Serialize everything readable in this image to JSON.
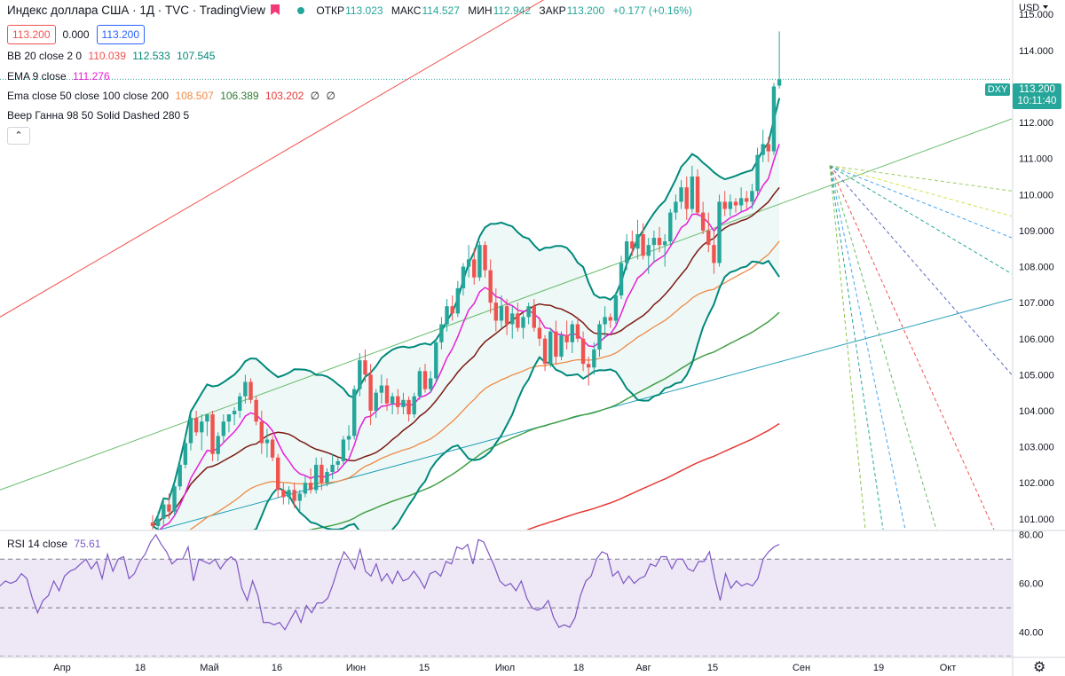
{
  "legend": {
    "title": "Индекс доллара США · 1Д · TVC · TradingView",
    "ohlc": [
      {
        "k": "ОТКР",
        "v": "113.023"
      },
      {
        "k": "МАКС",
        "v": "114.527"
      },
      {
        "k": "МИН",
        "v": "112.942"
      },
      {
        "k": "ЗАКР",
        "v": "113.200"
      }
    ],
    "change": "+0.177 (+0.16%)",
    "box_bid": "113.200",
    "box_mid": "0.000",
    "box_ask": "113.200",
    "bb": {
      "label": "BB 20 close 2 0",
      "v1": "110.039",
      "v2": "112.533",
      "v3": "107.545"
    },
    "ema9": {
      "label": "EMA 9 close",
      "v": "111.276"
    },
    "ema3": {
      "label": "Ema close 50 close 100 close 200",
      "v1": "108.507",
      "v2": "106.389",
      "v3": "103.202",
      "v4": "∅",
      "v5": "∅"
    },
    "gann": "Веер Ганна 98 50 Solid Dashed 280 5",
    "rsi": {
      "label": "RSI 14 close",
      "v": "75.61"
    },
    "collapse": "⌃"
  },
  "axis": {
    "currency": "USD",
    "price_ticks": [
      "115.000",
      "114.000",
      "113.000",
      "112.000",
      "111.000",
      "110.000",
      "109.000",
      "108.000",
      "107.000",
      "106.000",
      "105.000",
      "104.000",
      "103.000",
      "102.000",
      "101.000"
    ],
    "rsi_ticks": [
      "80.00",
      "60.00",
      "40.00"
    ],
    "time_ticks": [
      "Апр",
      "18",
      "Май",
      "16",
      "Июн",
      "15",
      "Июл",
      "18",
      "Авг",
      "15",
      "Сен",
      "19",
      "Окт"
    ],
    "last_price": "113.200",
    "countdown": "10:11:40",
    "symbol": "DXY"
  },
  "colors": {
    "up": "#26a69a",
    "down": "#ef5350",
    "bb": "#00897b",
    "ema9": "#e91ed6",
    "ema50": "#7b1a12",
    "ema100": "#ef8a45",
    "ema200": "#43a047",
    "ema_red": "#e53935",
    "rsi_line": "#7e57c2",
    "rsi_band": "#ede7f6"
  },
  "chart_data": {
    "type": "candlestick",
    "title": "Индекс доллара США · 1Д · TVC",
    "ylabel": "USD",
    "ylim": [
      100.7,
      115.4
    ],
    "x_range": [
      0,
      205
    ],
    "candles": [
      {
        "o": 100.9,
        "h": 101.1,
        "l": 100.6,
        "c": 100.8
      },
      {
        "o": 100.8,
        "h": 101.2,
        "l": 100.6,
        "c": 101.0
      },
      {
        "o": 101.0,
        "h": 101.6,
        "l": 100.8,
        "c": 101.4
      },
      {
        "o": 101.4,
        "h": 101.7,
        "l": 101.0,
        "c": 101.2
      },
      {
        "o": 101.2,
        "h": 102.0,
        "l": 101.1,
        "c": 101.9
      },
      {
        "o": 101.9,
        "h": 102.7,
        "l": 101.8,
        "c": 102.5
      },
      {
        "o": 102.5,
        "h": 103.3,
        "l": 102.4,
        "c": 103.1
      },
      {
        "o": 103.1,
        "h": 103.9,
        "l": 102.9,
        "c": 103.8
      },
      {
        "o": 103.8,
        "h": 104.0,
        "l": 103.3,
        "c": 103.4
      },
      {
        "o": 103.4,
        "h": 103.9,
        "l": 102.9,
        "c": 103.7
      },
      {
        "o": 103.7,
        "h": 103.9,
        "l": 103.3,
        "c": 103.9
      },
      {
        "o": 103.9,
        "h": 104.0,
        "l": 102.6,
        "c": 102.8
      },
      {
        "o": 102.8,
        "h": 103.4,
        "l": 102.6,
        "c": 103.3
      },
      {
        "o": 103.3,
        "h": 103.9,
        "l": 103.1,
        "c": 103.7
      },
      {
        "o": 103.7,
        "h": 103.9,
        "l": 103.4,
        "c": 103.9
      },
      {
        "o": 103.9,
        "h": 104.1,
        "l": 103.6,
        "c": 104.0
      },
      {
        "o": 104.0,
        "h": 104.5,
        "l": 103.8,
        "c": 104.4
      },
      {
        "o": 104.4,
        "h": 105.0,
        "l": 104.2,
        "c": 104.8
      },
      {
        "o": 104.8,
        "h": 104.9,
        "l": 104.2,
        "c": 104.3
      },
      {
        "o": 104.3,
        "h": 104.4,
        "l": 103.6,
        "c": 103.7
      },
      {
        "o": 103.7,
        "h": 104.0,
        "l": 102.8,
        "c": 103.1
      },
      {
        "o": 103.1,
        "h": 103.5,
        "l": 102.7,
        "c": 103.2
      },
      {
        "o": 103.2,
        "h": 103.3,
        "l": 102.6,
        "c": 102.7
      },
      {
        "o": 102.7,
        "h": 102.8,
        "l": 101.6,
        "c": 101.8
      },
      {
        "o": 101.8,
        "h": 102.0,
        "l": 101.4,
        "c": 101.6
      },
      {
        "o": 101.6,
        "h": 101.9,
        "l": 101.4,
        "c": 101.8
      },
      {
        "o": 101.8,
        "h": 102.0,
        "l": 101.3,
        "c": 101.5
      },
      {
        "o": 101.5,
        "h": 101.8,
        "l": 101.2,
        "c": 101.7
      },
      {
        "o": 101.7,
        "h": 102.2,
        "l": 101.6,
        "c": 102.0
      },
      {
        "o": 102.0,
        "h": 102.4,
        "l": 101.7,
        "c": 101.8
      },
      {
        "o": 101.8,
        "h": 102.7,
        "l": 101.7,
        "c": 102.5
      },
      {
        "o": 102.5,
        "h": 102.7,
        "l": 101.8,
        "c": 102.0
      },
      {
        "o": 102.0,
        "h": 102.4,
        "l": 101.9,
        "c": 102.3
      },
      {
        "o": 102.3,
        "h": 102.8,
        "l": 102.1,
        "c": 102.5
      },
      {
        "o": 102.5,
        "h": 102.7,
        "l": 102.3,
        "c": 102.6
      },
      {
        "o": 102.6,
        "h": 103.3,
        "l": 102.5,
        "c": 103.2
      },
      {
        "o": 103.2,
        "h": 103.6,
        "l": 102.9,
        "c": 103.3
      },
      {
        "o": 103.3,
        "h": 104.7,
        "l": 103.2,
        "c": 104.6
      },
      {
        "o": 104.6,
        "h": 105.6,
        "l": 104.4,
        "c": 105.4
      },
      {
        "o": 105.4,
        "h": 105.7,
        "l": 104.8,
        "c": 105.0
      },
      {
        "o": 105.0,
        "h": 105.3,
        "l": 103.6,
        "c": 104.0
      },
      {
        "o": 104.0,
        "h": 104.6,
        "l": 103.8,
        "c": 104.5
      },
      {
        "o": 104.5,
        "h": 105.0,
        "l": 104.2,
        "c": 104.7
      },
      {
        "o": 104.7,
        "h": 104.9,
        "l": 104.0,
        "c": 104.2
      },
      {
        "o": 104.2,
        "h": 104.5,
        "l": 103.9,
        "c": 104.4
      },
      {
        "o": 104.4,
        "h": 104.6,
        "l": 103.9,
        "c": 104.1
      },
      {
        "o": 104.1,
        "h": 104.5,
        "l": 103.9,
        "c": 104.3
      },
      {
        "o": 104.3,
        "h": 104.4,
        "l": 103.7,
        "c": 103.9
      },
      {
        "o": 103.9,
        "h": 104.5,
        "l": 103.8,
        "c": 104.4
      },
      {
        "o": 104.4,
        "h": 105.2,
        "l": 104.3,
        "c": 105.1
      },
      {
        "o": 105.1,
        "h": 105.3,
        "l": 104.5,
        "c": 104.6
      },
      {
        "o": 104.6,
        "h": 105.1,
        "l": 104.5,
        "c": 104.9
      },
      {
        "o": 104.9,
        "h": 106.0,
        "l": 104.8,
        "c": 105.9
      },
      {
        "o": 105.9,
        "h": 106.6,
        "l": 105.7,
        "c": 106.4
      },
      {
        "o": 106.4,
        "h": 107.1,
        "l": 106.2,
        "c": 106.9
      },
      {
        "o": 106.9,
        "h": 107.2,
        "l": 106.5,
        "c": 106.7
      },
      {
        "o": 106.7,
        "h": 107.6,
        "l": 106.6,
        "c": 107.4
      },
      {
        "o": 107.4,
        "h": 108.1,
        "l": 107.2,
        "c": 108.0
      },
      {
        "o": 108.0,
        "h": 108.6,
        "l": 107.7,
        "c": 108.2
      },
      {
        "o": 108.2,
        "h": 108.5,
        "l": 107.5,
        "c": 107.7
      },
      {
        "o": 107.7,
        "h": 108.7,
        "l": 107.6,
        "c": 108.6
      },
      {
        "o": 108.6,
        "h": 108.7,
        "l": 107.7,
        "c": 107.9
      },
      {
        "o": 107.9,
        "h": 108.2,
        "l": 106.7,
        "c": 107.0
      },
      {
        "o": 107.0,
        "h": 107.4,
        "l": 106.2,
        "c": 106.5
      },
      {
        "o": 106.5,
        "h": 107.2,
        "l": 106.3,
        "c": 106.9
      },
      {
        "o": 106.9,
        "h": 107.1,
        "l": 106.1,
        "c": 106.4
      },
      {
        "o": 106.4,
        "h": 106.9,
        "l": 106.0,
        "c": 106.7
      },
      {
        "o": 106.7,
        "h": 107.0,
        "l": 106.2,
        "c": 106.3
      },
      {
        "o": 106.3,
        "h": 106.7,
        "l": 106.0,
        "c": 106.6
      },
      {
        "o": 106.6,
        "h": 107.0,
        "l": 106.4,
        "c": 106.9
      },
      {
        "o": 106.9,
        "h": 107.1,
        "l": 106.2,
        "c": 106.3
      },
      {
        "o": 106.3,
        "h": 106.6,
        "l": 105.8,
        "c": 106.0
      },
      {
        "o": 106.0,
        "h": 106.1,
        "l": 105.1,
        "c": 105.3
      },
      {
        "o": 105.3,
        "h": 106.3,
        "l": 105.2,
        "c": 106.2
      },
      {
        "o": 106.2,
        "h": 106.5,
        "l": 105.3,
        "c": 105.5
      },
      {
        "o": 105.5,
        "h": 106.2,
        "l": 105.4,
        "c": 106.1
      },
      {
        "o": 106.1,
        "h": 106.5,
        "l": 105.7,
        "c": 105.9
      },
      {
        "o": 105.9,
        "h": 106.5,
        "l": 105.6,
        "c": 106.4
      },
      {
        "o": 106.4,
        "h": 106.6,
        "l": 105.9,
        "c": 106.0
      },
      {
        "o": 106.0,
        "h": 106.2,
        "l": 105.1,
        "c": 105.3
      },
      {
        "o": 105.3,
        "h": 105.5,
        "l": 104.7,
        "c": 105.2
      },
      {
        "o": 105.2,
        "h": 105.9,
        "l": 105.0,
        "c": 105.7
      },
      {
        "o": 105.7,
        "h": 106.5,
        "l": 105.5,
        "c": 106.4
      },
      {
        "o": 106.4,
        "h": 106.9,
        "l": 106.0,
        "c": 106.6
      },
      {
        "o": 106.6,
        "h": 106.7,
        "l": 106.3,
        "c": 106.5
      },
      {
        "o": 106.5,
        "h": 107.3,
        "l": 106.4,
        "c": 107.2
      },
      {
        "o": 107.2,
        "h": 108.3,
        "l": 107.1,
        "c": 108.1
      },
      {
        "o": 108.1,
        "h": 108.9,
        "l": 107.9,
        "c": 108.7
      },
      {
        "o": 108.7,
        "h": 109.0,
        "l": 108.3,
        "c": 108.5
      },
      {
        "o": 108.5,
        "h": 109.3,
        "l": 108.2,
        "c": 108.9
      },
      {
        "o": 108.9,
        "h": 109.2,
        "l": 108.2,
        "c": 108.3
      },
      {
        "o": 108.3,
        "h": 108.8,
        "l": 107.8,
        "c": 108.6
      },
      {
        "o": 108.6,
        "h": 109.0,
        "l": 108.1,
        "c": 108.8
      },
      {
        "o": 108.8,
        "h": 109.1,
        "l": 108.4,
        "c": 108.6
      },
      {
        "o": 108.6,
        "h": 108.9,
        "l": 108.0,
        "c": 108.7
      },
      {
        "o": 108.7,
        "h": 109.6,
        "l": 108.6,
        "c": 109.5
      },
      {
        "o": 109.5,
        "h": 110.0,
        "l": 109.3,
        "c": 109.8
      },
      {
        "o": 109.8,
        "h": 110.4,
        "l": 109.6,
        "c": 110.2
      },
      {
        "o": 110.2,
        "h": 110.5,
        "l": 109.3,
        "c": 109.6
      },
      {
        "o": 109.6,
        "h": 110.8,
        "l": 109.5,
        "c": 110.5
      },
      {
        "o": 110.5,
        "h": 110.7,
        "l": 109.4,
        "c": 109.5
      },
      {
        "o": 109.5,
        "h": 109.8,
        "l": 108.9,
        "c": 109.0
      },
      {
        "o": 109.0,
        "h": 109.5,
        "l": 108.4,
        "c": 108.6
      },
      {
        "o": 108.6,
        "h": 109.0,
        "l": 107.8,
        "c": 108.1
      },
      {
        "o": 108.1,
        "h": 110.0,
        "l": 108.0,
        "c": 109.8
      },
      {
        "o": 109.8,
        "h": 110.1,
        "l": 109.4,
        "c": 109.6
      },
      {
        "o": 109.6,
        "h": 110.0,
        "l": 109.4,
        "c": 109.8
      },
      {
        "o": 109.8,
        "h": 109.9,
        "l": 109.5,
        "c": 109.7
      },
      {
        "o": 109.7,
        "h": 110.2,
        "l": 109.5,
        "c": 109.9
      },
      {
        "o": 109.9,
        "h": 110.1,
        "l": 109.6,
        "c": 109.8
      },
      {
        "o": 109.8,
        "h": 110.3,
        "l": 109.6,
        "c": 110.1
      },
      {
        "o": 110.1,
        "h": 111.3,
        "l": 110.0,
        "c": 111.1
      },
      {
        "o": 111.1,
        "h": 111.8,
        "l": 110.9,
        "c": 111.4
      },
      {
        "o": 111.4,
        "h": 111.6,
        "l": 110.9,
        "c": 111.2
      },
      {
        "o": 111.2,
        "h": 113.1,
        "l": 111.1,
        "c": 113.0
      },
      {
        "o": 113.023,
        "h": 114.527,
        "l": 112.942,
        "c": 113.2
      }
    ],
    "rsi": {
      "ylim": [
        30,
        81
      ],
      "levels": [
        70,
        50,
        30
      ],
      "values": [
        59,
        61,
        60,
        61,
        64,
        62,
        54,
        48,
        53,
        55,
        61,
        57,
        63,
        65,
        66,
        68,
        70,
        66,
        69,
        62,
        72,
        65,
        70,
        71,
        62,
        64,
        69,
        72,
        77,
        80,
        76,
        73,
        68,
        70,
        70,
        75,
        61,
        70,
        69,
        68,
        70,
        66,
        69,
        71,
        69,
        58,
        53,
        61,
        55,
        44,
        44,
        43,
        44,
        41,
        45,
        49,
        44,
        51,
        48,
        52,
        52,
        54,
        60,
        67,
        73,
        70,
        66,
        74,
        65,
        63,
        68,
        61,
        64,
        60,
        65,
        61,
        62,
        65,
        62,
        58,
        64,
        65,
        63,
        69,
        68,
        75,
        74,
        76,
        68,
        78,
        77,
        72,
        67,
        61,
        59,
        60,
        57,
        61,
        54,
        50,
        49,
        50,
        53,
        46,
        42,
        43,
        42,
        46,
        55,
        61,
        63,
        70,
        73,
        72,
        63,
        65,
        60,
        63,
        60,
        62,
        63,
        68,
        67,
        71,
        71,
        66,
        70,
        70,
        66,
        65,
        69,
        69,
        73,
        62,
        53,
        64,
        58,
        61,
        59,
        60,
        59,
        62,
        70,
        73,
        75,
        76
      ]
    }
  }
}
